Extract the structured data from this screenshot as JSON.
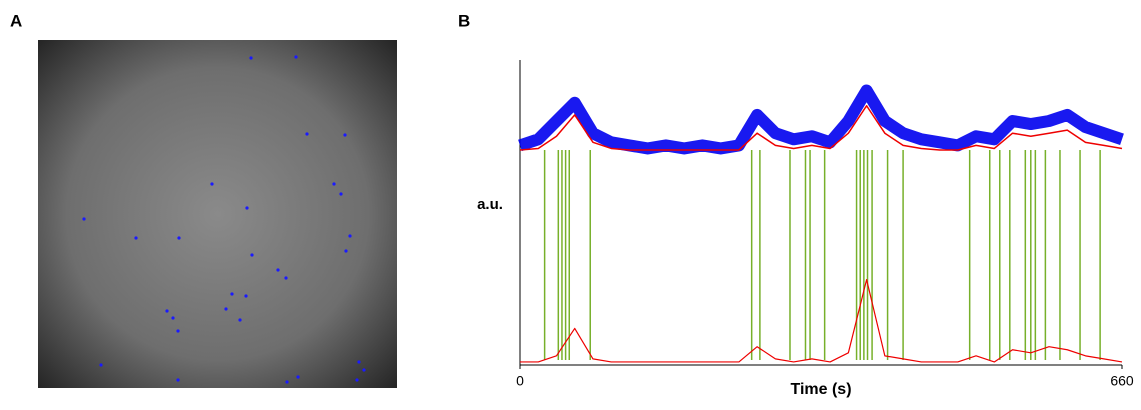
{
  "panels": [
    {
      "label": "A"
    },
    {
      "label": "B"
    }
  ],
  "chart_data": {
    "type": "line",
    "xlabel": "Time (s)",
    "ylabel": "a.u.",
    "x": [
      0,
      20,
      40,
      60,
      80,
      100,
      120,
      140,
      160,
      180,
      200,
      220,
      240,
      260,
      280,
      300,
      320,
      340,
      360,
      380,
      400,
      420,
      440,
      460,
      480,
      500,
      520,
      540,
      560,
      580,
      600,
      620,
      640,
      660
    ],
    "series": [
      {
        "color": "#0000ee",
        "values": [
          72,
          74,
          80,
          86,
          76,
          73,
          72,
          71,
          72,
          71,
          72,
          71,
          72,
          82,
          76,
          74,
          75,
          73,
          80,
          90,
          80,
          76,
          74,
          73,
          72,
          75,
          74,
          80,
          79,
          80,
          82,
          78,
          76,
          74
        ]
      },
      {
        "color": "#ee0000",
        "values": [
          70.5,
          71,
          75,
          82,
          73,
          71,
          70.5,
          70.5,
          70.5,
          70.5,
          70.5,
          70.5,
          70.5,
          76,
          72,
          71,
          72,
          71,
          76,
          85,
          76,
          72,
          71,
          70.5,
          70.5,
          72,
          71,
          76,
          75,
          76,
          77,
          73,
          72,
          71
        ]
      },
      {
        "color": "#ee0000",
        "values": [
          1,
          1,
          3,
          12,
          2,
          1,
          1,
          1,
          1,
          1,
          1,
          1,
          1,
          6,
          2,
          1,
          2,
          1,
          4,
          28,
          3,
          2,
          1,
          1,
          1,
          3,
          1,
          5,
          4,
          6,
          5,
          3,
          2,
          1
        ]
      }
    ],
    "events": {
      "color": "#77b02a",
      "x": [
        27,
        42,
        46,
        50,
        54,
        77,
        254,
        263,
        296,
        313,
        318,
        334,
        369,
        373,
        377,
        381,
        386,
        403,
        420,
        493,
        515,
        526,
        537,
        554,
        560,
        565,
        576,
        592,
        614,
        636
      ]
    },
    "xlim": [
      0,
      660
    ],
    "xticks": [
      0,
      660
    ],
    "ylim": [
      0,
      100
    ]
  }
}
